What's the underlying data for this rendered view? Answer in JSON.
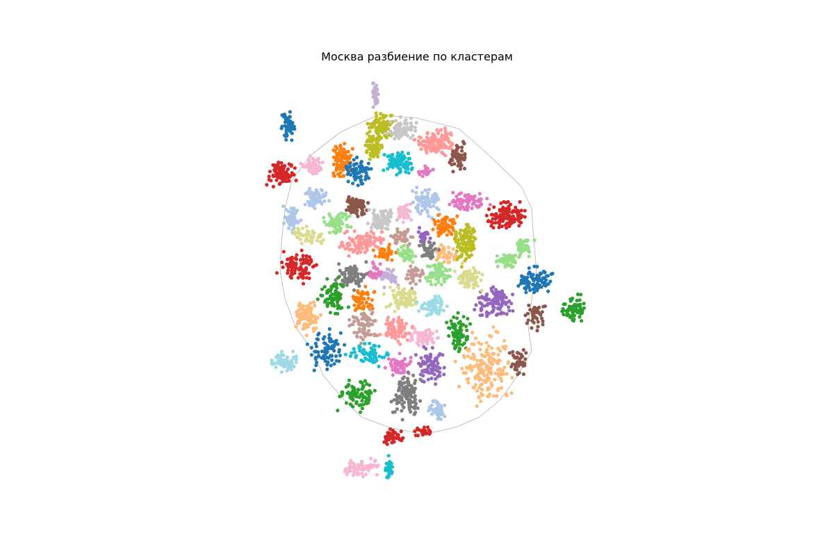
{
  "title": "Москва разбиение по кластерам",
  "palette": [
    "#1f77b4",
    "#aec7e8",
    "#ff7f0e",
    "#ffbb78",
    "#2ca02c",
    "#98df8a",
    "#d62728",
    "#ff9896",
    "#9467bd",
    "#c5b0d5",
    "#8c564b",
    "#c49c94",
    "#e377c2",
    "#f7b6d2",
    "#7f7f7f",
    "#c7c7c7",
    "#bcbd22",
    "#dbdb8d",
    "#17becf",
    "#9edae5"
  ],
  "edge_color": "#b0b0b0",
  "chart_data": {
    "type": "scatter",
    "title": "Москва разбиение по кластерам",
    "xlabel": "",
    "ylabel": "",
    "grid": false,
    "axes_visible": false,
    "cluster_count": 60
  }
}
